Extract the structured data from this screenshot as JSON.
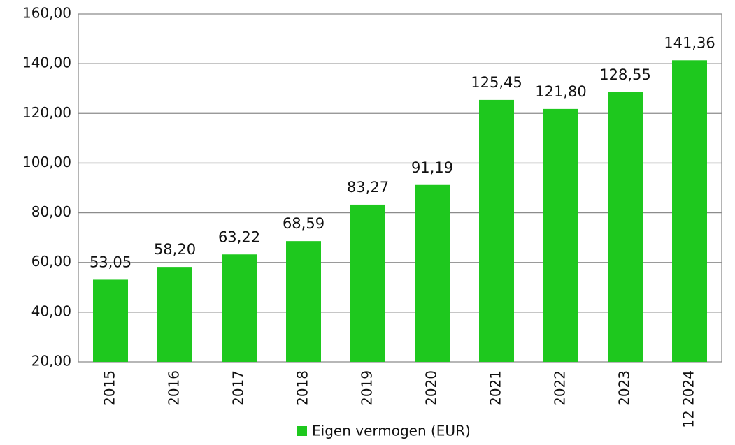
{
  "chart_data": {
    "type": "bar",
    "categories": [
      "2015",
      "2016",
      "2017",
      "2018",
      "2019",
      "2020",
      "2021",
      "2022",
      "2023",
      "12 2024"
    ],
    "series": [
      {
        "name": "Eigen vermogen (EUR)",
        "color": "#1ec81e",
        "values": [
          53.05,
          58.2,
          63.22,
          68.59,
          83.27,
          91.19,
          125.45,
          121.8,
          128.55,
          141.36
        ],
        "value_labels": [
          "53,05",
          "58,20",
          "63,22",
          "68,59",
          "83,27",
          "91,19",
          "125,45",
          "121,80",
          "128,55",
          "141,36"
        ]
      }
    ],
    "ylim": [
      20,
      160
    ],
    "yticks": [
      {
        "value": 20,
        "label": "20,00"
      },
      {
        "value": 40,
        "label": "40,00"
      },
      {
        "value": 60,
        "label": "60,00"
      },
      {
        "value": 80,
        "label": "80,00"
      },
      {
        "value": 100,
        "label": "100,00"
      },
      {
        "value": 120,
        "label": "120,00"
      },
      {
        "value": 140,
        "label": "140,00"
      },
      {
        "value": 160,
        "label": "160,00"
      }
    ],
    "grid": true,
    "legend": "bottom"
  }
}
